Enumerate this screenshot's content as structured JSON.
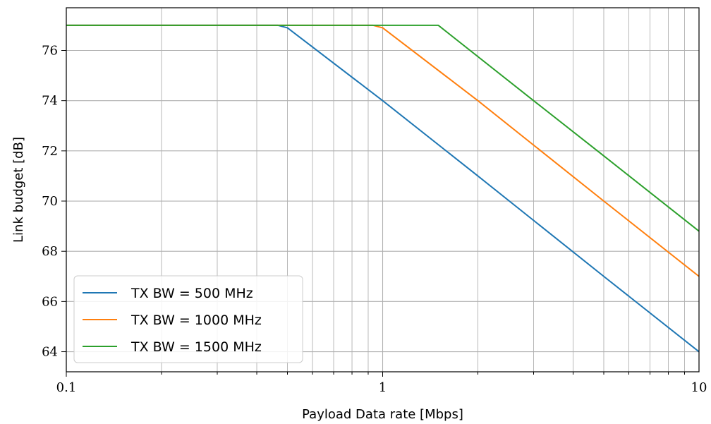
{
  "chart_data": {
    "type": "line",
    "title": "",
    "xlabel": "Payload Data rate [Mbps]",
    "ylabel": "Link budget [dB]",
    "x_scale": "log",
    "xlim": [
      0.1,
      10
    ],
    "ylim": [
      63.2,
      77.7
    ],
    "x_ticks": [
      {
        "value": 0.1,
        "label": "0.1"
      },
      {
        "value": 1,
        "label": "1"
      },
      {
        "value": 10,
        "label": "10"
      }
    ],
    "y_ticks": [
      {
        "value": 64,
        "label": "64"
      },
      {
        "value": 66,
        "label": "66"
      },
      {
        "value": 68,
        "label": "68"
      },
      {
        "value": 70,
        "label": "70"
      },
      {
        "value": 72,
        "label": "72"
      },
      {
        "value": 74,
        "label": "74"
      },
      {
        "value": 76,
        "label": "76"
      }
    ],
    "grid": true,
    "legend_position": "lower-left",
    "series": [
      {
        "name": "TX BW = 500 MHz",
        "color": "#1f77b4",
        "points": [
          [
            0.1,
            77.0
          ],
          [
            0.467,
            77.0
          ],
          [
            0.5,
            76.9
          ],
          [
            1,
            74.0
          ],
          [
            2,
            71.0
          ],
          [
            5,
            67.0
          ],
          [
            10,
            64.0
          ]
        ]
      },
      {
        "name": "TX BW = 1000 MHz",
        "color": "#ff7f0e",
        "points": [
          [
            0.1,
            77.0
          ],
          [
            0.933,
            77.0
          ],
          [
            1,
            76.9
          ],
          [
            2,
            74.0
          ],
          [
            5,
            70.0
          ],
          [
            10,
            67.0
          ]
        ]
      },
      {
        "name": "TX BW = 1500 MHz",
        "color": "#2ca02c",
        "points": [
          [
            0.1,
            77.0
          ],
          [
            1.5,
            77.0
          ],
          [
            3,
            74.0
          ],
          [
            5,
            71.8
          ],
          [
            10,
            68.8
          ]
        ]
      }
    ]
  }
}
